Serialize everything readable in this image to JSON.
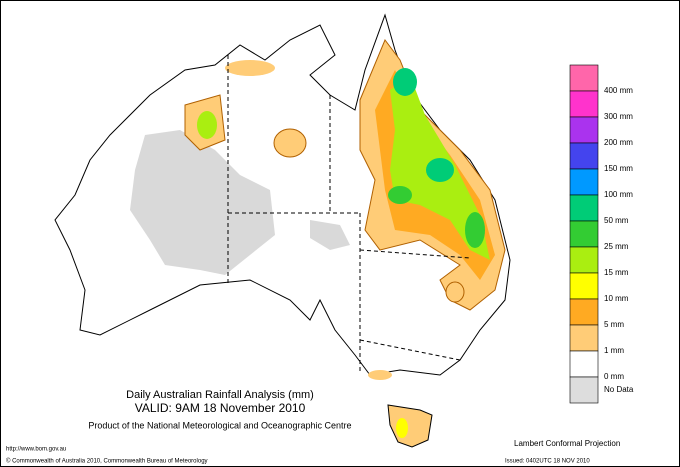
{
  "header": {
    "title": "Daily Australian Rainfall Analysis (mm)",
    "valid": "VALID: 9AM 18 November 2010",
    "product": "Product of the National Meteorological and Oceanographic Centre"
  },
  "legend": {
    "colors": [
      "#ff66aa",
      "#ff33cc",
      "#aa33ee",
      "#4444ee",
      "#0099ff",
      "#00cc77",
      "#33cc33",
      "#aaee11",
      "#ffff00",
      "#ffaa22",
      "#ffcc77",
      "#ffffff",
      "#dddddd"
    ],
    "labels": [
      "400 mm",
      "300 mm",
      "200 mm",
      "150 mm",
      "100 mm",
      "50 mm",
      "25 mm",
      "15 mm",
      "10 mm",
      "5 mm",
      "1 mm",
      "0 mm",
      "No Data"
    ]
  },
  "footer": {
    "url": "http://www.bom.gov.au",
    "copyright": "© Commonwealth of Australia 2010, Commonwealth Bureau of Meteorology",
    "projection": "Lambert Conformal Projection",
    "issued": "Issued: 0402UTC 18 NOV 2010"
  }
}
